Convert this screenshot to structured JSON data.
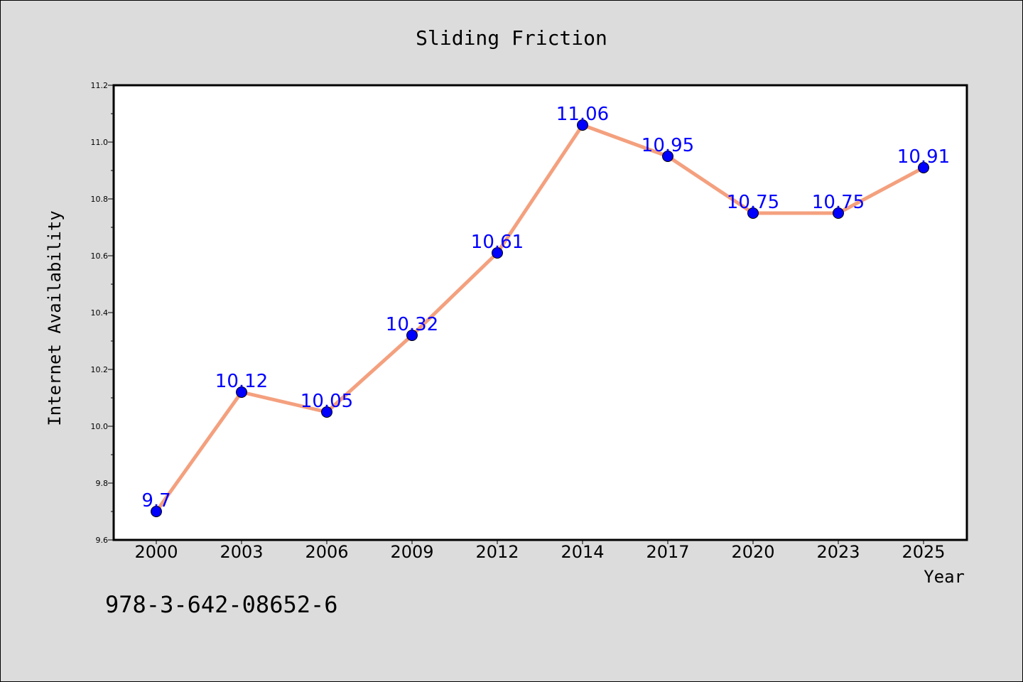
{
  "chart_data": {
    "type": "line",
    "title": "Sliding Friction",
    "xlabel": "Year",
    "ylabel": "Internet Availability",
    "categories": [
      "2000",
      "2003",
      "2006",
      "2009",
      "2012",
      "2014",
      "2017",
      "2020",
      "2023",
      "2025"
    ],
    "values": [
      9.7,
      10.12,
      10.05,
      10.32,
      10.61,
      11.06,
      10.95,
      10.75,
      10.75,
      10.91
    ],
    "data_labels": [
      "9.7",
      "10.12",
      "10.05",
      "10.32",
      "10.61",
      "11.06",
      "10.95",
      "10.75",
      "10.75",
      "10.91"
    ],
    "ylim": [
      9.6,
      11.2
    ],
    "yticks": [
      "9.6",
      "9.8",
      "10.0",
      "10.2",
      "10.4",
      "10.6",
      "10.8",
      "11.0",
      "11.2"
    ],
    "grid": false,
    "line_color": "#f4a07e",
    "marker_color": "#0000ff",
    "label_color": "#0000ff"
  },
  "footer": {
    "isbn": "978-3-642-08652-6"
  }
}
